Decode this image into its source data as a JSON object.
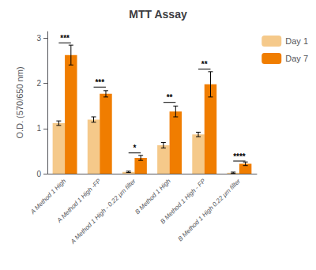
{
  "chart_data": {
    "type": "bar",
    "title": "MTT Assay",
    "ylabel": "O.D. (570/650 nm)",
    "categories": [
      "A Method 1 High",
      "A Method 1 High -FP",
      "A Method 1 High - 0.22 μm filter",
      "B Method 1 High",
      "B Method 1 High - FP",
      "B Method 1 High 0.22 μm filter"
    ],
    "series": [
      {
        "name": "Day 1",
        "color": "#F5C98A",
        "values": [
          1.12,
          1.2,
          0.04,
          0.63,
          0.87,
          0.02
        ],
        "errors": [
          0.05,
          0.06,
          0.015,
          0.06,
          0.05,
          0.015
        ]
      },
      {
        "name": "Day 7",
        "color": "#F07D00",
        "values": [
          2.63,
          1.77,
          0.35,
          1.38,
          1.98,
          0.22
        ],
        "errors": [
          0.22,
          0.07,
          0.055,
          0.12,
          0.28,
          0.04
        ]
      }
    ],
    "annotations": [
      {
        "category": "A Method 1 High",
        "label": "***",
        "y": 2.9
      },
      {
        "category": "A Method 1 High -FP",
        "label": "***",
        "y": 1.92
      },
      {
        "category": "A Method 1 High - 0.22 μm filter",
        "label": "*",
        "y": 0.46
      },
      {
        "category": "B Method 1 High",
        "label": "**",
        "y": 1.58
      },
      {
        "category": "B Method 1 High - FP",
        "label": "**",
        "y": 2.32
      },
      {
        "category": "B Method 1 High 0.22 μm filter",
        "label": "****",
        "y": 0.28
      }
    ],
    "ylim": [
      0,
      3.15
    ],
    "yticks": [
      0,
      1,
      2,
      3
    ],
    "grid": false,
    "legend": "upper right"
  }
}
